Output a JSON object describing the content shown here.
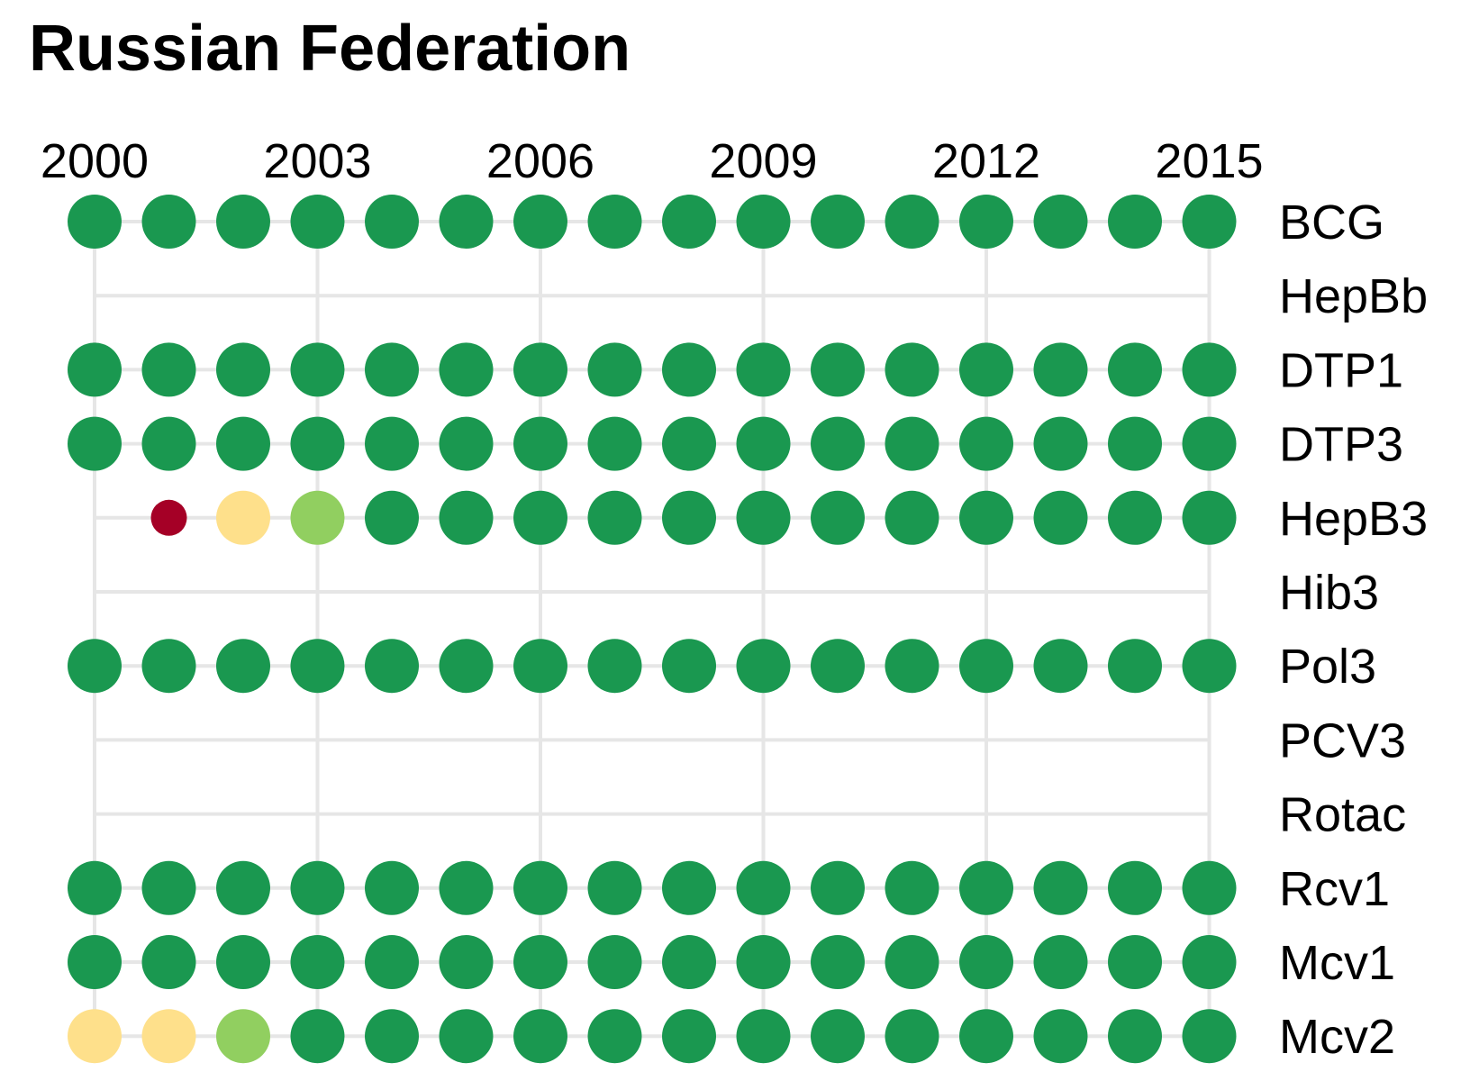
{
  "chart_data": {
    "type": "dot-matrix",
    "title": "Russian Federation",
    "x_tick_labels": [
      "2000",
      "2003",
      "2006",
      "2009",
      "2012",
      "2015"
    ],
    "years": [
      2000,
      2001,
      2002,
      2003,
      2004,
      2005,
      2006,
      2007,
      2008,
      2009,
      2010,
      2011,
      2012,
      2013,
      2014,
      2015
    ],
    "categories": [
      "BCG",
      "HepBb",
      "DTP1",
      "DTP3",
      "HepB3",
      "Hib3",
      "Pol3",
      "PCV3",
      "Rotac",
      "Rcv1",
      "Mcv1",
      "Mcv2"
    ],
    "coverage_level_legend": {
      "very-low": "#a50026",
      "low": "#fee08b",
      "medium": "#91cf60",
      "high": "#1a9850"
    },
    "series": [
      {
        "name": "BCG",
        "levels": [
          "high",
          "high",
          "high",
          "high",
          "high",
          "high",
          "high",
          "high",
          "high",
          "high",
          "high",
          "high",
          "high",
          "high",
          "high",
          "high"
        ]
      },
      {
        "name": "HepBb",
        "levels": [
          null,
          null,
          null,
          null,
          null,
          null,
          null,
          null,
          null,
          null,
          null,
          null,
          null,
          null,
          null,
          null
        ]
      },
      {
        "name": "DTP1",
        "levels": [
          "high",
          "high",
          "high",
          "high",
          "high",
          "high",
          "high",
          "high",
          "high",
          "high",
          "high",
          "high",
          "high",
          "high",
          "high",
          "high"
        ]
      },
      {
        "name": "DTP3",
        "levels": [
          "high",
          "high",
          "high",
          "high",
          "high",
          "high",
          "high",
          "high",
          "high",
          "high",
          "high",
          "high",
          "high",
          "high",
          "high",
          "high"
        ]
      },
      {
        "name": "HepB3",
        "levels": [
          null,
          "very-low",
          "low",
          "medium",
          "high",
          "high",
          "high",
          "high",
          "high",
          "high",
          "high",
          "high",
          "high",
          "high",
          "high",
          "high"
        ]
      },
      {
        "name": "Hib3",
        "levels": [
          null,
          null,
          null,
          null,
          null,
          null,
          null,
          null,
          null,
          null,
          null,
          null,
          null,
          null,
          null,
          null
        ]
      },
      {
        "name": "Pol3",
        "levels": [
          "high",
          "high",
          "high",
          "high",
          "high",
          "high",
          "high",
          "high",
          "high",
          "high",
          "high",
          "high",
          "high",
          "high",
          "high",
          "high"
        ]
      },
      {
        "name": "PCV3",
        "levels": [
          null,
          null,
          null,
          null,
          null,
          null,
          null,
          null,
          null,
          null,
          null,
          null,
          null,
          null,
          null,
          null
        ]
      },
      {
        "name": "Rotac",
        "levels": [
          null,
          null,
          null,
          null,
          null,
          null,
          null,
          null,
          null,
          null,
          null,
          null,
          null,
          null,
          null,
          null
        ]
      },
      {
        "name": "Rcv1",
        "levels": [
          "high",
          "high",
          "high",
          "high",
          "high",
          "high",
          "high",
          "high",
          "high",
          "high",
          "high",
          "high",
          "high",
          "high",
          "high",
          "high"
        ]
      },
      {
        "name": "Mcv1",
        "levels": [
          "high",
          "high",
          "high",
          "high",
          "high",
          "high",
          "high",
          "high",
          "high",
          "high",
          "high",
          "high",
          "high",
          "high",
          "high",
          "high"
        ]
      },
      {
        "name": "Mcv2",
        "levels": [
          "low",
          "low",
          "medium",
          "high",
          "high",
          "high",
          "high",
          "high",
          "high",
          "high",
          "high",
          "high",
          "high",
          "high",
          "high",
          "high"
        ]
      }
    ],
    "grid_color": "#e6e6e6",
    "grid": true,
    "x_axis_position": "top",
    "row_labels_position": "right"
  }
}
